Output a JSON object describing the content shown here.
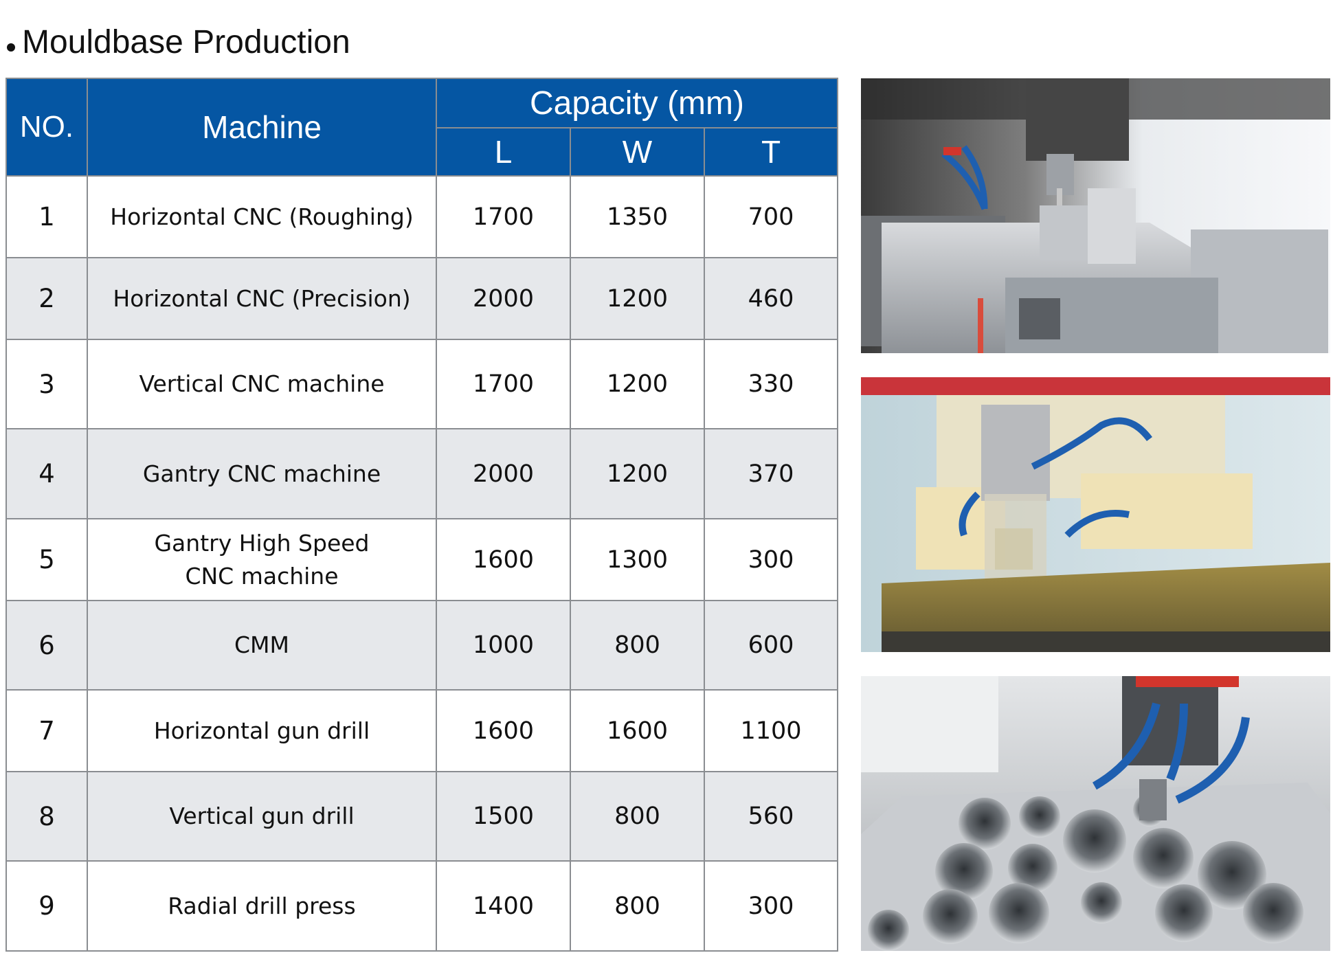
{
  "heading": "Mouldbase Production",
  "table": {
    "headers": {
      "no": "NO.",
      "machine": "Machine",
      "capacity": "Capacity (mm)",
      "l": "L",
      "w": "W",
      "t": "T"
    },
    "rows": [
      {
        "no": "1",
        "machine": "Horizontal CNC (Roughing)",
        "l": "1700",
        "w": "1350",
        "t": "700"
      },
      {
        "no": "2",
        "machine": "Horizontal CNC (Precision)",
        "l": "2000",
        "w": "1200",
        "t": "460"
      },
      {
        "no": "3",
        "machine": "Vertical CNC machine",
        "l": "1700",
        "w": "1200",
        "t": "330"
      },
      {
        "no": "4",
        "machine": "Gantry CNC machine",
        "l": "2000",
        "w": "1200",
        "t": "370"
      },
      {
        "no": "5",
        "machine": "Gantry High Speed",
        "machine_line2": "CNC machine",
        "l": "1600",
        "w": "1300",
        "t": "300"
      },
      {
        "no": "6",
        "machine": "CMM",
        "l": "1000",
        "w": "800",
        "t": "600"
      },
      {
        "no": "7",
        "machine": "Horizontal gun drill",
        "l": "1600",
        "w": "1600",
        "t": "1100"
      },
      {
        "no": "8",
        "machine": "Vertical gun drill",
        "l": "1500",
        "w": "800",
        "t": "560"
      },
      {
        "no": "9",
        "machine": "Radial drill press",
        "l": "1400",
        "w": "800",
        "t": "300"
      }
    ]
  },
  "colors": {
    "header_blue": "#0556a3",
    "row_alt": "#e6e8eb",
    "grid": "#8a8d91"
  },
  "photos": [
    "cnc-roughing-photo",
    "cnc-coolant-milling-photo",
    "gun-drilled-plate-photo"
  ]
}
